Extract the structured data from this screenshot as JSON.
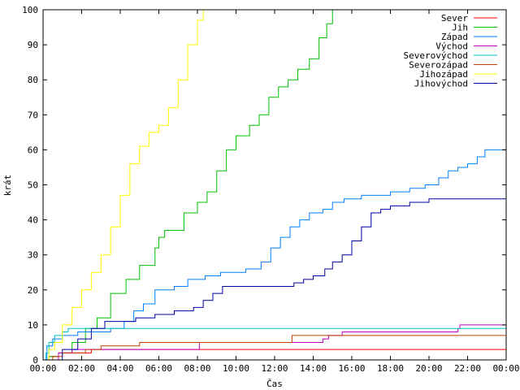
{
  "chart_data": {
    "type": "line",
    "xlabel": "Čas",
    "ylabel": "krát",
    "xlim": [
      0,
      24
    ],
    "ylim": [
      0,
      100
    ],
    "x_ticks": [
      "00:00",
      "02:00",
      "04:00",
      "06:00",
      "08:00",
      "10:00",
      "12:00",
      "14:00",
      "16:00",
      "18:00",
      "20:00",
      "22:00",
      "00:00"
    ],
    "y_ticks": [
      0,
      10,
      20,
      30,
      40,
      50,
      60,
      70,
      80,
      90,
      100
    ],
    "grid": false,
    "legend_position": "top-right",
    "series": [
      {
        "name": "Sever",
        "color": "#ff0000",
        "points": [
          [
            0,
            0
          ],
          [
            0.3,
            1
          ],
          [
            0.8,
            2
          ],
          [
            2.5,
            3
          ],
          [
            24,
            3
          ]
        ]
      },
      {
        "name": "Jih",
        "color": "#00c000",
        "points": [
          [
            0,
            0
          ],
          [
            0.3,
            1
          ],
          [
            0.8,
            2
          ],
          [
            1.5,
            5
          ],
          [
            2.2,
            9
          ],
          [
            2.8,
            12
          ],
          [
            3.5,
            19
          ],
          [
            4.3,
            23
          ],
          [
            5,
            27
          ],
          [
            5.8,
            32
          ],
          [
            6,
            35
          ],
          [
            6.3,
            37
          ],
          [
            6.8,
            37
          ],
          [
            7.3,
            42
          ],
          [
            8,
            45
          ],
          [
            8.5,
            48
          ],
          [
            9,
            54
          ],
          [
            9.5,
            60
          ],
          [
            10,
            64
          ],
          [
            10.7,
            67
          ],
          [
            11.2,
            70
          ],
          [
            11.7,
            75
          ],
          [
            12.2,
            78
          ],
          [
            12.7,
            80
          ],
          [
            13.2,
            83
          ],
          [
            13.8,
            86
          ],
          [
            14.3,
            92
          ],
          [
            14.7,
            96
          ],
          [
            15,
            100
          ]
        ]
      },
      {
        "name": "Západ",
        "color": "#0080ff",
        "points": [
          [
            0,
            0
          ],
          [
            0.2,
            4
          ],
          [
            0.5,
            6
          ],
          [
            1,
            7
          ],
          [
            1.8,
            8
          ],
          [
            2.5,
            8
          ],
          [
            3.5,
            9
          ],
          [
            4.2,
            11
          ],
          [
            4.7,
            14
          ],
          [
            5.2,
            16
          ],
          [
            5.8,
            20
          ],
          [
            6.8,
            21
          ],
          [
            7.5,
            23
          ],
          [
            8.4,
            24
          ],
          [
            9.2,
            25
          ],
          [
            10.5,
            26
          ],
          [
            11.3,
            28
          ],
          [
            11.8,
            32
          ],
          [
            12.3,
            35
          ],
          [
            12.8,
            38
          ],
          [
            13.3,
            40
          ],
          [
            13.8,
            42
          ],
          [
            14.5,
            43
          ],
          [
            15,
            45
          ],
          [
            15.6,
            46
          ],
          [
            16.5,
            47
          ],
          [
            17,
            47
          ],
          [
            18,
            48
          ],
          [
            19,
            49
          ],
          [
            19.8,
            50
          ],
          [
            20.5,
            52
          ],
          [
            21,
            54
          ],
          [
            21.5,
            55
          ],
          [
            22,
            56
          ],
          [
            22.5,
            58
          ],
          [
            22.9,
            60
          ],
          [
            24,
            60
          ]
        ]
      },
      {
        "name": "Východ",
        "color": "#c000c0",
        "points": [
          [
            0,
            0
          ],
          [
            0.8,
            2
          ],
          [
            1.5,
            3
          ],
          [
            8,
            3
          ],
          [
            8.1,
            5
          ],
          [
            14.5,
            6
          ],
          [
            14.8,
            7
          ],
          [
            15.5,
            8
          ],
          [
            16.5,
            8
          ],
          [
            21.5,
            9
          ],
          [
            21.6,
            10
          ],
          [
            24,
            10
          ]
        ]
      },
      {
        "name": "Severovýchod",
        "color": "#00c0c0",
        "points": [
          [
            0,
            0
          ],
          [
            0.15,
            2
          ],
          [
            0.3,
            5
          ],
          [
            0.6,
            7
          ],
          [
            1,
            8
          ],
          [
            1.3,
            9
          ],
          [
            24,
            9
          ]
        ]
      },
      {
        "name": "Severozápad",
        "color": "#c04000",
        "points": [
          [
            0,
            0
          ],
          [
            0.5,
            1
          ],
          [
            1,
            2
          ],
          [
            2.2,
            3
          ],
          [
            3,
            4
          ],
          [
            5,
            5
          ],
          [
            12.8,
            5
          ],
          [
            12.9,
            7
          ],
          [
            24,
            7
          ]
        ]
      },
      {
        "name": "Jihozápad",
        "color": "#ffff00",
        "points": [
          [
            0,
            0
          ],
          [
            0.3,
            3
          ],
          [
            0.6,
            5
          ],
          [
            1,
            10
          ],
          [
            1.5,
            15
          ],
          [
            2,
            20
          ],
          [
            2.5,
            25
          ],
          [
            3,
            30
          ],
          [
            3.5,
            38
          ],
          [
            4,
            47
          ],
          [
            4.5,
            56
          ],
          [
            5,
            61
          ],
          [
            5.5,
            65
          ],
          [
            6,
            67
          ],
          [
            6.5,
            72
          ],
          [
            7,
            80
          ],
          [
            7.5,
            90
          ],
          [
            8,
            97
          ],
          [
            8.3,
            100
          ]
        ]
      },
      {
        "name": "Jihovýchod",
        "color": "#0000a0",
        "points": [
          [
            0,
            0
          ],
          [
            1,
            3
          ],
          [
            1.8,
            6
          ],
          [
            2.5,
            9
          ],
          [
            3.2,
            11
          ],
          [
            4.8,
            12
          ],
          [
            5.8,
            13
          ],
          [
            6.8,
            14
          ],
          [
            7.8,
            15
          ],
          [
            8.3,
            17
          ],
          [
            8.8,
            19
          ],
          [
            9.3,
            21
          ],
          [
            11.5,
            21
          ],
          [
            13,
            22
          ],
          [
            13.5,
            23
          ],
          [
            14,
            24
          ],
          [
            14.6,
            26
          ],
          [
            15,
            28
          ],
          [
            15.5,
            30
          ],
          [
            16,
            34
          ],
          [
            16.5,
            38
          ],
          [
            17,
            42
          ],
          [
            17.5,
            43
          ],
          [
            18,
            44
          ],
          [
            19,
            45
          ],
          [
            20,
            46
          ],
          [
            24,
            46
          ]
        ]
      }
    ]
  }
}
